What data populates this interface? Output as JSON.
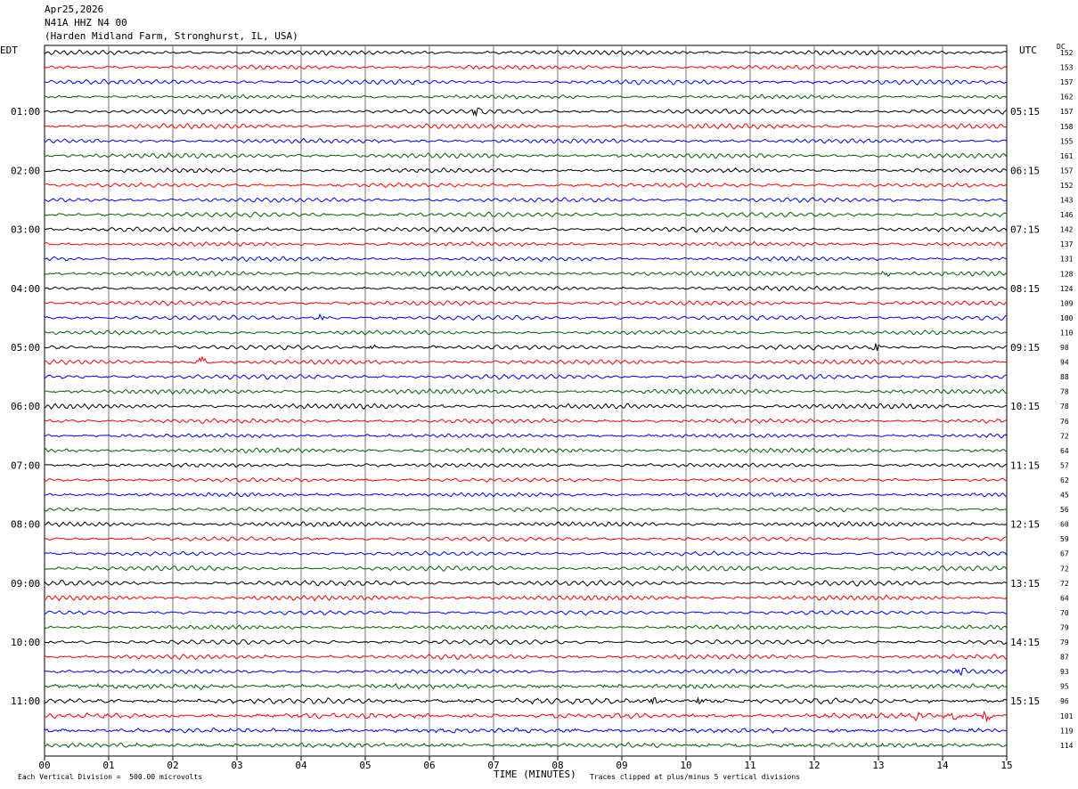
{
  "header": {
    "date": "Apr25,2026",
    "station": "N41A HHZ N4 00",
    "location": "(Harden Midland Farm, Stronghurst, IL, USA)"
  },
  "left_tz": "EDT",
  "right_tz": "UTC",
  "dc_label": "DC",
  "footer": {
    "scale": "Each Vertical Division =  500.00 microvolts",
    "xlabel": "TIME (MINUTES)",
    "clip": "Traces clipped at plus/minus 5 vertical divisions"
  },
  "chart_data": {
    "type": "line",
    "title": "N41A HHZ N4 00",
    "xlabel": "TIME (MINUTES)",
    "xlim": [
      0,
      15
    ],
    "x_ticks": [
      "00",
      "01",
      "02",
      "03",
      "04",
      "05",
      "06",
      "07",
      "08",
      "09",
      "10",
      "11",
      "12",
      "13",
      "14",
      "15"
    ],
    "left_hour_labels": [
      "01:00",
      "02:00",
      "03:00",
      "04:00",
      "05:00",
      "06:00",
      "07:00",
      "08:00",
      "09:00",
      "10:00",
      "11:00"
    ],
    "right_hour_labels": [
      "05:15",
      "06:15",
      "07:15",
      "08:15",
      "09:15",
      "10:15",
      "11:15",
      "12:15",
      "13:15",
      "14:15",
      "15:15"
    ],
    "trace_colors": [
      "#000000",
      "#ff0000",
      "#0000ff",
      "#006400"
    ],
    "dc_offsets": [
      152,
      153,
      157,
      162,
      157,
      158,
      155,
      161,
      157,
      152,
      143,
      146,
      142,
      137,
      131,
      128,
      124,
      109,
      100,
      110,
      98,
      94,
      88,
      78,
      78,
      76,
      72,
      64,
      57,
      62,
      45,
      56,
      60,
      59,
      67,
      72,
      72,
      64,
      70,
      79,
      79,
      87,
      93,
      95,
      96,
      101,
      119,
      114
    ],
    "events": [
      {
        "trace": 1,
        "minute": 6.7,
        "amp": 2
      },
      {
        "trace": 4,
        "minute": 6.75,
        "amp": 5
      },
      {
        "trace": 21,
        "minute": 2.45,
        "amp": 5
      },
      {
        "trace": 20,
        "minute": 5.1,
        "amp": 2
      },
      {
        "trace": 20,
        "minute": 6.1,
        "amp": 2
      },
      {
        "trace": 20,
        "minute": 12.95,
        "amp": 4
      },
      {
        "trace": 15,
        "minute": 13.1,
        "amp": 2
      },
      {
        "trace": 18,
        "minute": 4.3,
        "amp": 3
      },
      {
        "trace": 42,
        "minute": 14.3,
        "amp": 4
      },
      {
        "trace": 43,
        "minute": 0.8,
        "amp": 3
      },
      {
        "trace": 43,
        "minute": 2.4,
        "amp": 3
      },
      {
        "trace": 43,
        "minute": 3.8,
        "amp": 3
      },
      {
        "trace": 43,
        "minute": 5.5,
        "amp": 3
      },
      {
        "trace": 44,
        "minute": 9.5,
        "amp": 4
      },
      {
        "trace": 44,
        "minute": 10.2,
        "amp": 4
      },
      {
        "trace": 45,
        "minute": 12.7,
        "amp": 4
      },
      {
        "trace": 45,
        "minute": 13.6,
        "amp": 5
      },
      {
        "trace": 45,
        "minute": 14.2,
        "amp": 5
      },
      {
        "trace": 45,
        "minute": 14.7,
        "amp": 5
      }
    ]
  }
}
